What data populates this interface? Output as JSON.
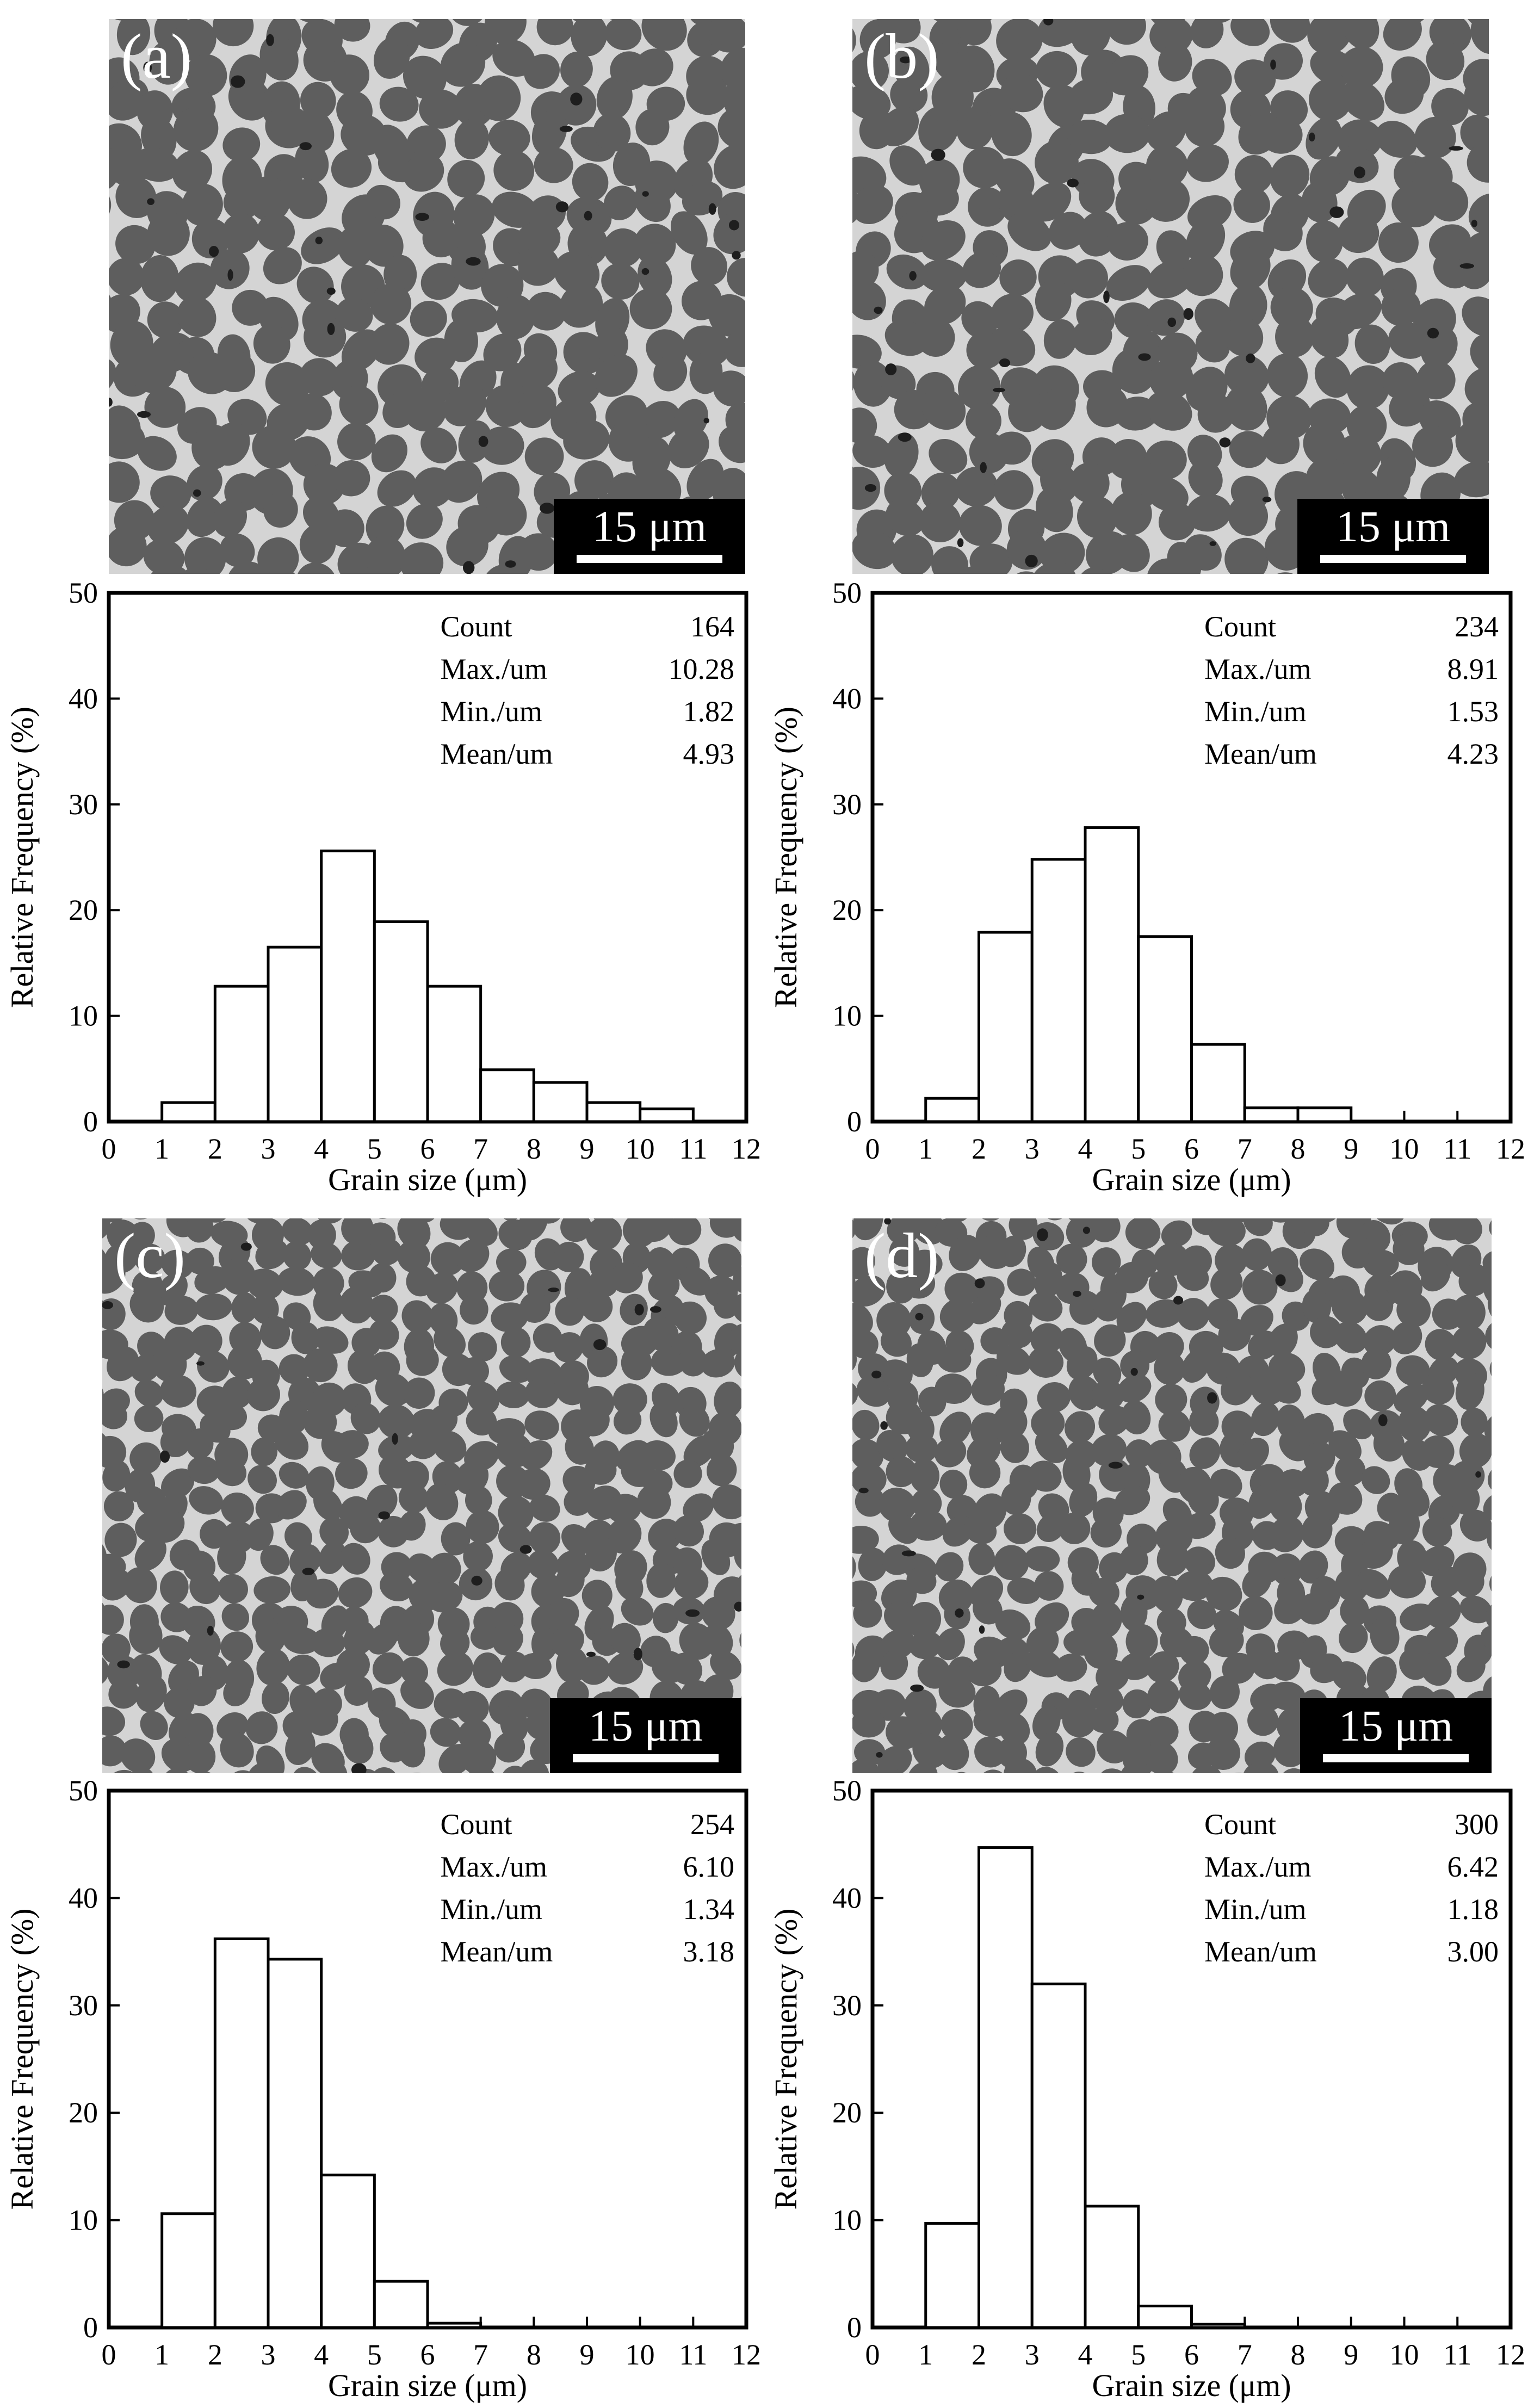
{
  "scale_bar_label": "15 μm",
  "panels": [
    {
      "label": "(a)"
    },
    {
      "label": "(b)"
    },
    {
      "label": "(c)"
    },
    {
      "label": "(d)"
    }
  ],
  "chart_data": [
    {
      "type": "bar",
      "panel": "(a)",
      "xlabel": "Grain size (μm)",
      "ylabel": "Relative Frequency (%)",
      "xlim": [
        0,
        12
      ],
      "ylim": [
        0,
        50
      ],
      "xticks": [
        0,
        1,
        2,
        3,
        4,
        5,
        6,
        7,
        8,
        9,
        10,
        11,
        12
      ],
      "yticks": [
        0,
        10,
        20,
        30,
        40,
        50
      ],
      "bins": [
        [
          1,
          2
        ],
        [
          2,
          3
        ],
        [
          3,
          4
        ],
        [
          4,
          5
        ],
        [
          5,
          6
        ],
        [
          6,
          7
        ],
        [
          7,
          8
        ],
        [
          8,
          9
        ],
        [
          9,
          10
        ],
        [
          10,
          11
        ]
      ],
      "values": [
        1.8,
        12.8,
        16.5,
        25.6,
        18.9,
        12.8,
        4.9,
        3.7,
        1.8,
        1.2
      ],
      "stats": [
        {
          "label": "Count",
          "value": "164"
        },
        {
          "label": "Max./um",
          "value": "10.28"
        },
        {
          "label": "Min./um",
          "value": "1.82"
        },
        {
          "label": "Mean/um",
          "value": "4.93"
        }
      ]
    },
    {
      "type": "bar",
      "panel": "(b)",
      "xlabel": "Grain size (μm)",
      "ylabel": "Relative Frequency (%)",
      "xlim": [
        0,
        12
      ],
      "ylim": [
        0,
        50
      ],
      "xticks": [
        0,
        1,
        2,
        3,
        4,
        5,
        6,
        7,
        8,
        9,
        10,
        11,
        12
      ],
      "yticks": [
        0,
        10,
        20,
        30,
        40,
        50
      ],
      "bins": [
        [
          1,
          2
        ],
        [
          2,
          3
        ],
        [
          3,
          4
        ],
        [
          4,
          5
        ],
        [
          5,
          6
        ],
        [
          6,
          7
        ],
        [
          7,
          8
        ],
        [
          8,
          9
        ]
      ],
      "values": [
        2.2,
        17.9,
        24.8,
        27.8,
        17.5,
        7.3,
        1.3,
        1.3
      ],
      "stats": [
        {
          "label": "Count",
          "value": "234"
        },
        {
          "label": "Max./um",
          "value": "8.91"
        },
        {
          "label": "Min./um",
          "value": "1.53"
        },
        {
          "label": "Mean/um",
          "value": "4.23"
        }
      ]
    },
    {
      "type": "bar",
      "panel": "(c)",
      "xlabel": "Grain size (μm)",
      "ylabel": "Relative Frequency (%)",
      "xlim": [
        0,
        12
      ],
      "ylim": [
        0,
        50
      ],
      "xticks": [
        0,
        1,
        2,
        3,
        4,
        5,
        6,
        7,
        8,
        9,
        10,
        11,
        12
      ],
      "yticks": [
        0,
        10,
        20,
        30,
        40,
        50
      ],
      "bins": [
        [
          1,
          2
        ],
        [
          2,
          3
        ],
        [
          3,
          4
        ],
        [
          4,
          5
        ],
        [
          5,
          6
        ],
        [
          6,
          7
        ]
      ],
      "values": [
        10.6,
        36.2,
        34.3,
        14.2,
        4.3,
        0.4
      ],
      "stats": [
        {
          "label": "Count",
          "value": "254"
        },
        {
          "label": "Max./um",
          "value": "6.10"
        },
        {
          "label": "Min./um",
          "value": "1.34"
        },
        {
          "label": "Mean/um",
          "value": "3.18"
        }
      ]
    },
    {
      "type": "bar",
      "panel": "(d)",
      "xlabel": "Grain size (μm)",
      "ylabel": "Relative Frequency (%)",
      "xlim": [
        0,
        12
      ],
      "ylim": [
        0,
        50
      ],
      "xticks": [
        0,
        1,
        2,
        3,
        4,
        5,
        6,
        7,
        8,
        9,
        10,
        11,
        12
      ],
      "yticks": [
        0,
        10,
        20,
        30,
        40,
        50
      ],
      "bins": [
        [
          1,
          2
        ],
        [
          2,
          3
        ],
        [
          3,
          4
        ],
        [
          4,
          5
        ],
        [
          5,
          6
        ],
        [
          6,
          7
        ]
      ],
      "values": [
        9.7,
        44.7,
        32.0,
        11.3,
        2.0,
        0.3
      ],
      "stats": [
        {
          "label": "Count",
          "value": "300"
        },
        {
          "label": "Max./um",
          "value": "6.42"
        },
        {
          "label": "Min./um",
          "value": "1.18"
        },
        {
          "label": "Mean/um",
          "value": "3.00"
        }
      ]
    }
  ]
}
